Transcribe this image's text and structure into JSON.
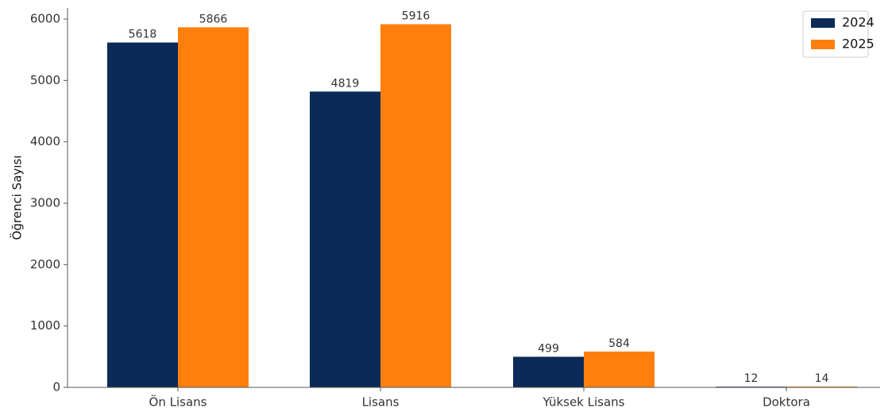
{
  "chart_data": {
    "type": "bar",
    "title": "",
    "xlabel": "",
    "ylabel": "Öğrenci Sayısı",
    "categories": [
      "Ön Lisans",
      "Lisans",
      "Yüksek Lisans",
      "Doktora"
    ],
    "series": [
      {
        "name": "2024",
        "color": "#0b2a57",
        "values": [
          5618,
          4819,
          499,
          12
        ]
      },
      {
        "name": "2025",
        "color": "#ff7f0e",
        "values": [
          5866,
          5916,
          584,
          14
        ]
      }
    ],
    "ylim": [
      0,
      6000
    ],
    "yticks": [
      0,
      1000,
      2000,
      3000,
      4000,
      5000,
      6000
    ],
    "grid": false,
    "legend_position": "top-right",
    "data_labels": true
  }
}
